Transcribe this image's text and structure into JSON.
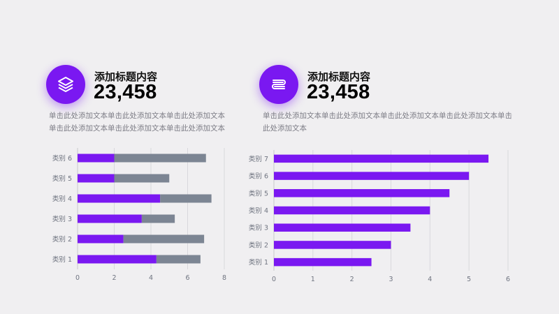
{
  "panels": [
    {
      "icon": "layers-icon",
      "title": "添加标题内容",
      "number": "23,458",
      "description": "单击此处添加文本单击此处添加文本单击此处添加文本单击此处添加文本单击此处添加文本单击此处添加文本"
    },
    {
      "icon": "book-icon",
      "title": "添加标题内容",
      "number": "23,458",
      "description": "单击此处添加文本单击此处添加文本单击此处添加文本单击此处添加文本单击此处添加文本"
    }
  ],
  "colors": {
    "accent": "#7a18f1",
    "secondary": "#7c8593",
    "grid": "#d9d8dc",
    "axis_text": "#6f7480"
  },
  "chart_data": [
    {
      "type": "bar",
      "orientation": "horizontal",
      "stacked": true,
      "categories": [
        "类别 1",
        "类别 2",
        "类别 3",
        "类别 4",
        "类别 5",
        "类别 6"
      ],
      "series": [
        {
          "values": [
            4.3,
            2.5,
            3.5,
            4.5,
            2.0,
            2.0
          ],
          "color": "#7a18f1"
        },
        {
          "values": [
            2.4,
            4.4,
            1.8,
            2.8,
            3.0,
            5.0
          ],
          "color": "#7c8593"
        }
      ],
      "xlim": [
        0,
        8
      ],
      "xticks": [
        0,
        2,
        4,
        6,
        8
      ],
      "grid": true
    },
    {
      "type": "bar",
      "orientation": "horizontal",
      "categories": [
        "类别 1",
        "类别 2",
        "类别 3",
        "类别 4",
        "类别 5",
        "类别 6",
        "类别 7"
      ],
      "series": [
        {
          "values": [
            2.5,
            3.0,
            3.5,
            4.0,
            4.5,
            5.0,
            5.5
          ],
          "color": "#7a18f1"
        }
      ],
      "xlim": [
        0,
        6
      ],
      "xticks": [
        0,
        1,
        2,
        3,
        4,
        5,
        6
      ],
      "grid": true
    }
  ]
}
